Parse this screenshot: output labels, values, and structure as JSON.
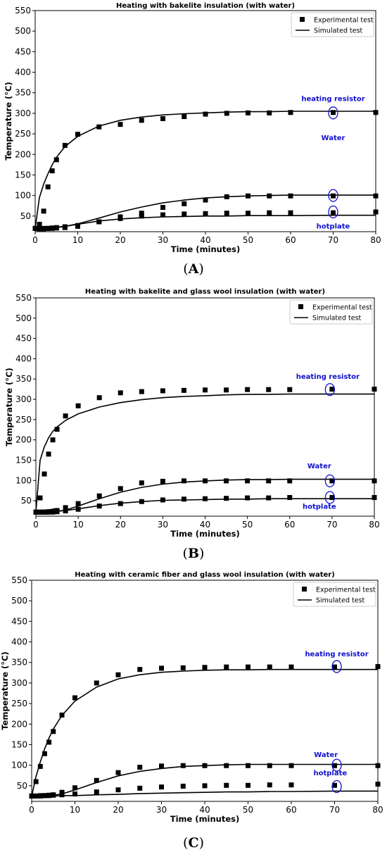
{
  "panel_labels": [
    "A",
    "B",
    "C"
  ],
  "colors": {
    "marker": "#000000",
    "line": "#000000",
    "annotation": "#1010d0",
    "ellipse": "#1010d0"
  },
  "chart_data": [
    {
      "type": "scatter",
      "title": "Heating with bakelite insulation (with water)",
      "xlabel": "Time (minutes)",
      "ylabel": "Temperature (°C)",
      "xlim": [
        0,
        80
      ],
      "ylim": [
        12,
        550
      ],
      "xticks": [
        0,
        10,
        20,
        30,
        40,
        50,
        60,
        70,
        80
      ],
      "yticks": [
        50,
        100,
        150,
        200,
        250,
        300,
        350,
        400,
        450,
        500,
        550
      ],
      "grid": false,
      "legend": {
        "position": "top-right",
        "entries": [
          "Experimental test",
          "Simulated test"
        ]
      },
      "annotations": [
        {
          "text": "heating resistor",
          "x": 70,
          "y": 330
        },
        {
          "text": "Water",
          "x": 70,
          "y": 235
        },
        {
          "text": "hotplate",
          "x": 70,
          "y": 20
        }
      ],
      "highlights": [
        {
          "x": 70,
          "y": 301
        },
        {
          "x": 70,
          "y": 100
        },
        {
          "x": 70,
          "y": 60
        }
      ],
      "experimental": {
        "heating resistor": {
          "x": [
            0,
            1,
            2,
            3,
            4,
            5,
            7,
            10,
            15,
            20,
            25,
            30,
            35,
            40,
            45,
            50,
            55,
            60,
            70,
            80
          ],
          "y": [
            20,
            30,
            62,
            121,
            160,
            187,
            222,
            249,
            267,
            273,
            283,
            287,
            292,
            298,
            300,
            301,
            301,
            302,
            302,
            302
          ]
        },
        "water": {
          "x": [
            0,
            1,
            2,
            3,
            4,
            5,
            7,
            10,
            15,
            20,
            25,
            30,
            35,
            40,
            45,
            50,
            55,
            60,
            70,
            80
          ],
          "y": [
            20,
            20,
            20,
            20,
            21,
            22,
            24,
            27,
            36,
            48,
            57,
            71,
            80,
            89,
            97,
            99,
            99,
            99,
            99,
            99
          ]
        },
        "hotplate": {
          "x": [
            0,
            1,
            2,
            3,
            4,
            5,
            7,
            10,
            15,
            20,
            25,
            30,
            35,
            40,
            45,
            50,
            55,
            60,
            70,
            80
          ],
          "y": [
            20,
            19,
            19,
            20,
            20,
            21,
            22,
            25,
            36,
            44,
            50,
            53,
            55,
            56,
            57,
            57,
            58,
            58,
            58,
            60
          ]
        }
      },
      "simulated": {
        "heating resistor": {
          "x": [
            0,
            1,
            2,
            3,
            4,
            5,
            7,
            10,
            15,
            20,
            25,
            30,
            35,
            40,
            45,
            50,
            55,
            60,
            70,
            80
          ],
          "y": [
            20,
            95,
            128,
            153,
            175,
            193,
            219,
            244,
            269,
            283,
            291,
            296,
            299,
            301,
            303,
            304,
            304,
            305,
            305,
            305
          ]
        },
        "water": {
          "x": [
            0,
            1,
            2,
            3,
            4,
            5,
            7,
            10,
            15,
            20,
            25,
            30,
            35,
            40,
            45,
            50,
            55,
            60,
            70,
            80
          ],
          "y": [
            20,
            20,
            21,
            21,
            22,
            23,
            25,
            31,
            45,
            60,
            72,
            82,
            89,
            94,
            97,
            99,
            100,
            101,
            101,
            101
          ]
        },
        "hotplate": {
          "x": [
            0,
            1,
            2,
            3,
            4,
            5,
            7,
            10,
            15,
            20,
            25,
            30,
            35,
            40,
            45,
            50,
            55,
            60,
            70,
            80
          ],
          "y": [
            20,
            20,
            20,
            21,
            21,
            22,
            25,
            30,
            38,
            43,
            46,
            48,
            49,
            50,
            50,
            51,
            51,
            51,
            52,
            52
          ]
        }
      }
    },
    {
      "type": "scatter",
      "title": "Heating with bakelite and glass wool insulation (with water)",
      "xlabel": "Time (minutes)",
      "ylabel": "Temperature (°C)",
      "xlim": [
        0,
        80
      ],
      "ylim": [
        12,
        550
      ],
      "xticks": [
        0,
        10,
        20,
        30,
        40,
        50,
        60,
        70,
        80
      ],
      "yticks": [
        50,
        100,
        150,
        200,
        250,
        300,
        350,
        400,
        450,
        500,
        550
      ],
      "grid": false,
      "legend": {
        "position": "top-right",
        "entries": [
          "Experimental test",
          "Simulated test"
        ]
      },
      "annotations": [
        {
          "text": "heating resistor",
          "x": 69,
          "y": 350
        },
        {
          "text": "Water",
          "x": 67,
          "y": 130
        },
        {
          "text": "hotplate",
          "x": 67,
          "y": 30
        }
      ],
      "highlights": [
        {
          "x": 69.5,
          "y": 324
        },
        {
          "x": 69.5,
          "y": 99
        },
        {
          "x": 69.5,
          "y": 58
        }
      ],
      "experimental": {
        "heating resistor": {
          "x": [
            0,
            1,
            2,
            3,
            4,
            5,
            7,
            10,
            15,
            20,
            25,
            30,
            35,
            40,
            45,
            50,
            55,
            60,
            70,
            80
          ],
          "y": [
            22,
            57,
            116,
            165,
            200,
            226,
            259,
            284,
            304,
            316,
            319,
            321,
            322,
            323,
            323,
            324,
            324,
            324,
            325,
            325
          ]
        },
        "water": {
          "x": [
            0,
            1,
            1.5,
            2,
            2.5,
            3,
            3.5,
            4,
            4.5,
            5,
            7,
            10,
            15,
            20,
            25,
            30,
            35,
            40,
            45,
            50,
            55,
            60,
            70,
            80
          ],
          "y": [
            22,
            22,
            22,
            22,
            22,
            23,
            23,
            24,
            25,
            26,
            33,
            43,
            62,
            80,
            94,
            98,
            99,
            99,
            99,
            99,
            99,
            99,
            99,
            99
          ]
        },
        "hotplate": {
          "x": [
            0,
            1,
            2,
            3,
            4,
            5,
            7,
            10,
            15,
            20,
            25,
            30,
            35,
            40,
            45,
            50,
            55,
            60,
            70,
            80
          ],
          "y": [
            22,
            22,
            22,
            22,
            22,
            23,
            25,
            29,
            37,
            43,
            48,
            52,
            54,
            55,
            56,
            57,
            57,
            58,
            58,
            58
          ]
        }
      },
      "simulated": {
        "heating resistor": {
          "x": [
            0,
            1,
            2,
            3,
            4,
            5,
            7,
            10,
            15,
            20,
            25,
            30,
            35,
            40,
            45,
            50,
            55,
            60,
            70,
            80
          ],
          "y": [
            22,
            150,
            183,
            205,
            221,
            232,
            248,
            264,
            281,
            292,
            299,
            304,
            307,
            309,
            311,
            312,
            312,
            313,
            313,
            313
          ]
        },
        "water": {
          "x": [
            0,
            1,
            2,
            3,
            4,
            5,
            7,
            10,
            15,
            20,
            25,
            30,
            35,
            40,
            45,
            50,
            55,
            60,
            70,
            80
          ],
          "y": [
            22,
            22,
            22,
            22,
            23,
            24,
            27,
            37,
            55,
            71,
            83,
            91,
            96,
            99,
            101,
            102,
            102,
            103,
            103,
            103
          ]
        },
        "hotplate": {
          "x": [
            0,
            1,
            2,
            3,
            4,
            5,
            7,
            10,
            15,
            20,
            25,
            30,
            35,
            40,
            45,
            50,
            55,
            60,
            70,
            80
          ],
          "y": [
            22,
            22,
            22,
            23,
            23,
            24,
            26,
            30,
            38,
            44,
            48,
            51,
            52,
            53,
            54,
            54,
            55,
            55,
            55,
            55
          ]
        }
      }
    },
    {
      "type": "scatter",
      "title": "Heating with ceramic fiber and glass wool insulation (with water)",
      "xlabel": "Time (minutes)",
      "ylabel": "Temperature (°C)",
      "xlim": [
        0,
        80
      ],
      "ylim": [
        12,
        550
      ],
      "xticks": [
        0,
        10,
        20,
        30,
        40,
        50,
        60,
        70,
        80
      ],
      "yticks": [
        50,
        100,
        150,
        200,
        250,
        300,
        350,
        400,
        450,
        500,
        550
      ],
      "grid": false,
      "legend": {
        "position": "top-right",
        "entries": [
          "Experimental test",
          "Simulated test"
        ]
      },
      "annotations": [
        {
          "text": "heating resistor",
          "x": 70.5,
          "y": 365
        },
        {
          "text": "Water",
          "x": 68,
          "y": 120
        },
        {
          "text": "hotplate",
          "x": 69,
          "y": 75
        }
      ],
      "highlights": [
        {
          "x": 70.5,
          "y": 340
        },
        {
          "x": 70.5,
          "y": 100
        },
        {
          "x": 70.5,
          "y": 48
        }
      ],
      "experimental": {
        "heating resistor": {
          "x": [
            0,
            1,
            2,
            3,
            4,
            5,
            7,
            10,
            15,
            20,
            25,
            30,
            35,
            40,
            45,
            50,
            55,
            60,
            70,
            80
          ],
          "y": [
            25,
            60,
            97,
            128,
            156,
            182,
            222,
            264,
            300,
            320,
            333,
            336,
            337,
            338,
            339,
            339,
            339,
            339,
            339,
            340
          ]
        },
        "water": {
          "x": [
            0,
            1,
            2,
            3,
            4,
            5,
            7,
            10,
            15,
            20,
            25,
            30,
            35,
            40,
            45,
            50,
            55,
            60,
            70,
            80
          ],
          "y": [
            25,
            25,
            26,
            26,
            27,
            28,
            34,
            45,
            63,
            82,
            95,
            98,
            99,
            99,
            99,
            99,
            99,
            99,
            99,
            99
          ]
        },
        "hotplate": {
          "x": [
            0,
            1,
            2,
            3,
            4,
            5,
            7,
            10,
            15,
            20,
            25,
            30,
            35,
            40,
            45,
            50,
            55,
            60,
            70,
            80
          ],
          "y": [
            25,
            25,
            25,
            26,
            26,
            27,
            28,
            30,
            35,
            40,
            44,
            47,
            49,
            50,
            51,
            51,
            52,
            52,
            51,
            54
          ]
        }
      },
      "simulated": {
        "heating resistor": {
          "x": [
            0,
            1,
            2,
            3,
            4,
            5,
            7,
            10,
            15,
            20,
            25,
            30,
            35,
            40,
            45,
            50,
            55,
            60,
            70,
            80
          ],
          "y": [
            25,
            72,
            108,
            140,
            166,
            188,
            221,
            256,
            290,
            310,
            320,
            326,
            329,
            331,
            332,
            332,
            333,
            333,
            333,
            333
          ]
        },
        "water": {
          "x": [
            0,
            1,
            2,
            3,
            4,
            5,
            7,
            10,
            15,
            20,
            25,
            30,
            35,
            40,
            45,
            50,
            55,
            60,
            70,
            80
          ],
          "y": [
            25,
            25,
            25,
            26,
            26,
            27,
            30,
            40,
            58,
            74,
            85,
            92,
            97,
            99,
            101,
            102,
            102,
            102,
            102,
            102
          ]
        },
        "hotplate": {
          "x": [
            0,
            1,
            2,
            3,
            4,
            5,
            7,
            10,
            15,
            20,
            25,
            30,
            35,
            40,
            45,
            50,
            55,
            60,
            70,
            80
          ],
          "y": [
            25,
            25,
            25,
            25,
            25,
            25,
            26,
            26,
            28,
            29,
            31,
            32,
            33,
            34,
            35,
            35,
            36,
            36,
            37,
            37
          ]
        }
      }
    }
  ]
}
